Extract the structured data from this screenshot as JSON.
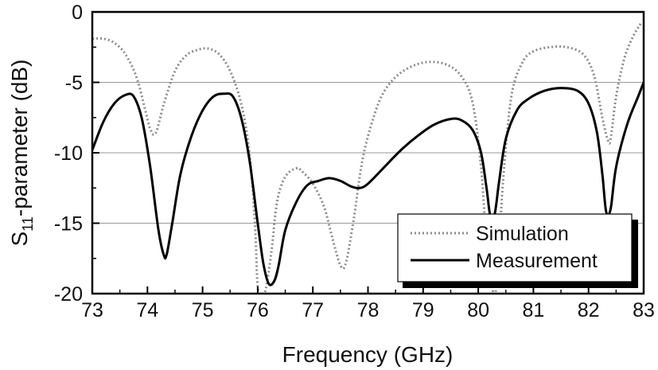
{
  "chart_data": {
    "type": "line",
    "title": "",
    "xlabel": "Frequency (GHz)",
    "ylabel_main": "S",
    "ylabel_sub": "11",
    "ylabel_rest": "-parameter (dB)",
    "xlim": [
      73,
      83
    ],
    "ylim": [
      -20,
      0
    ],
    "x_ticks": [
      "73",
      "74",
      "75",
      "76",
      "77",
      "78",
      "79",
      "80",
      "81",
      "82",
      "83"
    ],
    "y_ticks": [
      "0",
      "-5",
      "-10",
      "-15",
      "-20"
    ],
    "grid": "horizontal",
    "legend_position": "bottom-right",
    "series": [
      {
        "name": "Simulation",
        "style": "dotted",
        "color": "#8c8c8c",
        "x": [
          73.0,
          73.2,
          73.4,
          73.6,
          73.8,
          73.95,
          74.05,
          74.15,
          74.3,
          74.5,
          74.7,
          74.9,
          75.1,
          75.3,
          75.5,
          75.7,
          75.85,
          75.95,
          76.0,
          76.08,
          76.15,
          76.25,
          76.35,
          76.5,
          76.7,
          76.8,
          77.0,
          77.2,
          77.35,
          77.5,
          77.6,
          77.75,
          77.9,
          78.1,
          78.3,
          78.6,
          79.0,
          79.4,
          79.7,
          79.9,
          80.05,
          80.15,
          80.25,
          80.3,
          80.35,
          80.45,
          80.6,
          80.8,
          81.0,
          81.3,
          81.6,
          81.9,
          82.1,
          82.25,
          82.35,
          82.4,
          82.5,
          82.65,
          82.8,
          82.95
        ],
        "y": [
          -1.9,
          -1.9,
          -2.2,
          -3.0,
          -4.6,
          -6.8,
          -8.3,
          -8.6,
          -6.5,
          -4.2,
          -3.1,
          -2.7,
          -2.6,
          -3.0,
          -4.2,
          -6.5,
          -10.0,
          -15.0,
          -19.5,
          -20.0,
          -19.6,
          -17.0,
          -13.5,
          -11.7,
          -11.1,
          -11.3,
          -12.2,
          -13.8,
          -16.0,
          -18.0,
          -17.8,
          -14.5,
          -10.5,
          -7.5,
          -5.6,
          -4.3,
          -3.6,
          -3.7,
          -4.6,
          -6.5,
          -11.0,
          -16.5,
          -19.5,
          -20.0,
          -18.5,
          -12.0,
          -6.0,
          -3.6,
          -2.8,
          -2.5,
          -2.5,
          -3.0,
          -4.5,
          -7.5,
          -9.1,
          -9.0,
          -6.0,
          -3.3,
          -1.8,
          -0.8
        ]
      },
      {
        "name": "Measurement",
        "style": "solid",
        "color": "#000000",
        "x": [
          73.0,
          73.2,
          73.4,
          73.6,
          73.75,
          73.9,
          74.05,
          74.2,
          74.3,
          74.35,
          74.45,
          74.6,
          74.8,
          75.0,
          75.2,
          75.4,
          75.55,
          75.7,
          75.85,
          76.0,
          76.1,
          76.2,
          76.3,
          76.38,
          76.5,
          76.7,
          76.9,
          77.1,
          77.3,
          77.5,
          77.7,
          77.85,
          78.0,
          78.3,
          78.6,
          78.9,
          79.2,
          79.5,
          79.7,
          79.9,
          80.05,
          80.15,
          80.22,
          80.3,
          80.38,
          80.5,
          80.7,
          80.9,
          81.2,
          81.5,
          81.8,
          82.0,
          82.15,
          82.25,
          82.32,
          82.4,
          82.5,
          82.7,
          82.9,
          83.0
        ],
        "y": [
          -9.8,
          -7.8,
          -6.5,
          -5.9,
          -6.0,
          -7.6,
          -11.0,
          -15.5,
          -17.3,
          -17.2,
          -15.0,
          -11.5,
          -8.8,
          -7.0,
          -6.0,
          -5.8,
          -6.0,
          -7.5,
          -10.5,
          -15.0,
          -17.8,
          -19.3,
          -19.1,
          -18.0,
          -15.5,
          -13.5,
          -12.3,
          -12.0,
          -11.8,
          -12.0,
          -12.4,
          -12.5,
          -12.2,
          -11.0,
          -9.8,
          -8.8,
          -8.0,
          -7.6,
          -7.7,
          -8.4,
          -10.0,
          -12.5,
          -14.5,
          -14.3,
          -12.0,
          -9.0,
          -7.0,
          -6.2,
          -5.6,
          -5.4,
          -5.6,
          -6.5,
          -8.5,
          -11.5,
          -14.2,
          -14.0,
          -11.0,
          -8.0,
          -6.0,
          -5.0
        ]
      }
    ]
  }
}
